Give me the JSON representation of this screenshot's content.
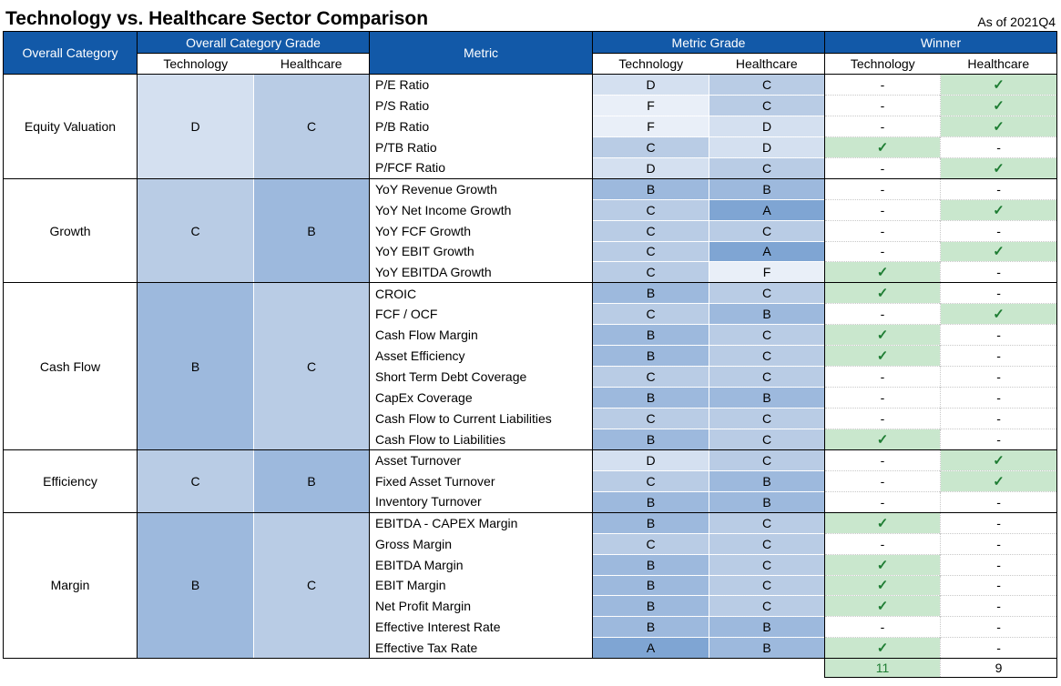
{
  "chart_data": {
    "type": "table",
    "title": "Technology vs. Healthcare Sector Comparison",
    "as_of": "As of 2021Q4",
    "header": {
      "overall_category": "Overall Category",
      "overall_category_grade": "Overall Category Grade",
      "metric": "Metric",
      "metric_grade": "Metric Grade",
      "winner": "Winner",
      "technology": "Technology",
      "healthcare": "Healthcare"
    },
    "symbols": {
      "check": "✓",
      "none": "-"
    },
    "colors": {
      "header_blue": "#1259A8",
      "winner_green_bg": "#C9E7CD",
      "check_green": "#1E7D33",
      "border_black": "#000000"
    },
    "grade_colors": {
      "A": "#7FA5D3",
      "B": "#9DB9DD",
      "C": "#B9CCE5",
      "D": "#D4E0F0",
      "F": "#E9EFF8"
    },
    "categories": [
      {
        "name": "Equity Valuation",
        "tech_grade": "D",
        "hc_grade": "C",
        "metrics": [
          {
            "name": "P/E Ratio",
            "tech": "D",
            "hc": "C",
            "winner": "healthcare"
          },
          {
            "name": "P/S Ratio",
            "tech": "F",
            "hc": "C",
            "winner": "healthcare"
          },
          {
            "name": "P/B Ratio",
            "tech": "F",
            "hc": "D",
            "winner": "healthcare"
          },
          {
            "name": "P/TB Ratio",
            "tech": "C",
            "hc": "D",
            "winner": "technology"
          },
          {
            "name": "P/FCF Ratio",
            "tech": "D",
            "hc": "C",
            "winner": "healthcare"
          }
        ]
      },
      {
        "name": "Growth",
        "tech_grade": "C",
        "hc_grade": "B",
        "metrics": [
          {
            "name": "YoY Revenue Growth",
            "tech": "B",
            "hc": "B",
            "winner": "none"
          },
          {
            "name": "YoY Net Income Growth",
            "tech": "C",
            "hc": "A",
            "winner": "healthcare"
          },
          {
            "name": "YoY FCF Growth",
            "tech": "C",
            "hc": "C",
            "winner": "none"
          },
          {
            "name": "YoY EBIT Growth",
            "tech": "C",
            "hc": "A",
            "winner": "healthcare"
          },
          {
            "name": "YoY EBITDA Growth",
            "tech": "C",
            "hc": "F",
            "winner": "technology"
          }
        ]
      },
      {
        "name": "Cash Flow",
        "tech_grade": "B",
        "hc_grade": "C",
        "metrics": [
          {
            "name": "CROIC",
            "tech": "B",
            "hc": "C",
            "winner": "technology"
          },
          {
            "name": "FCF / OCF",
            "tech": "C",
            "hc": "B",
            "winner": "healthcare"
          },
          {
            "name": "Cash Flow Margin",
            "tech": "B",
            "hc": "C",
            "winner": "technology"
          },
          {
            "name": "Asset Efficiency",
            "tech": "B",
            "hc": "C",
            "winner": "technology"
          },
          {
            "name": "Short Term Debt Coverage",
            "tech": "C",
            "hc": "C",
            "winner": "none"
          },
          {
            "name": "CapEx Coverage",
            "tech": "B",
            "hc": "B",
            "winner": "none"
          },
          {
            "name": "Cash Flow to Current Liabilities",
            "tech": "C",
            "hc": "C",
            "winner": "none"
          },
          {
            "name": "Cash Flow to Liabilities",
            "tech": "B",
            "hc": "C",
            "winner": "technology"
          }
        ]
      },
      {
        "name": "Efficiency",
        "tech_grade": "C",
        "hc_grade": "B",
        "metrics": [
          {
            "name": "Asset Turnover",
            "tech": "D",
            "hc": "C",
            "winner": "healthcare"
          },
          {
            "name": "Fixed Asset Turnover",
            "tech": "C",
            "hc": "B",
            "winner": "healthcare"
          },
          {
            "name": "Inventory Turnover",
            "tech": "B",
            "hc": "B",
            "winner": "none"
          }
        ]
      },
      {
        "name": "Margin",
        "tech_grade": "B",
        "hc_grade": "C",
        "metrics": [
          {
            "name": "EBITDA - CAPEX Margin",
            "tech": "B",
            "hc": "C",
            "winner": "technology"
          },
          {
            "name": "Gross Margin",
            "tech": "C",
            "hc": "C",
            "winner": "none"
          },
          {
            "name": "EBITDA Margin",
            "tech": "B",
            "hc": "C",
            "winner": "technology"
          },
          {
            "name": "EBIT Margin",
            "tech": "B",
            "hc": "C",
            "winner": "technology"
          },
          {
            "name": "Net Profit Margin",
            "tech": "B",
            "hc": "C",
            "winner": "technology"
          },
          {
            "name": "Effective Interest Rate",
            "tech": "B",
            "hc": "B",
            "winner": "none"
          },
          {
            "name": "Effective Tax Rate",
            "tech": "A",
            "hc": "B",
            "winner": "technology"
          }
        ]
      }
    ],
    "totals": {
      "technology": "11",
      "healthcare": "9"
    }
  }
}
